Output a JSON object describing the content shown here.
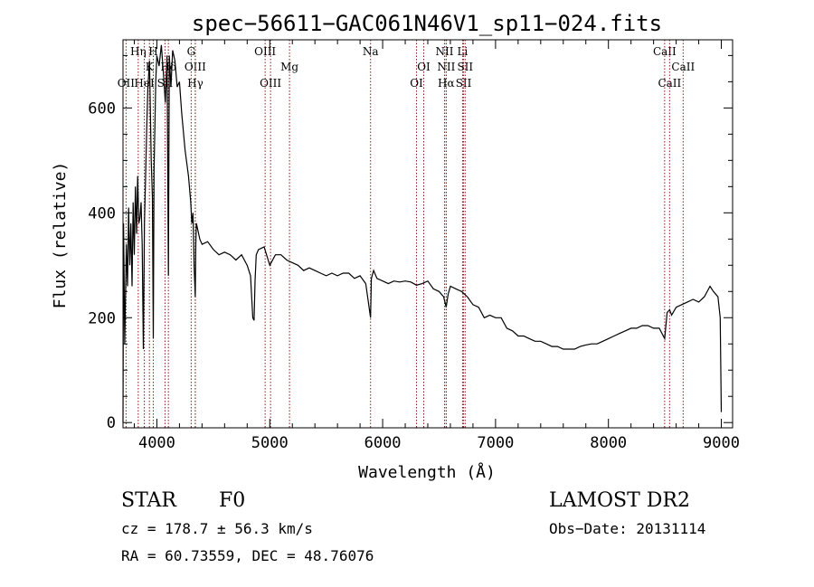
{
  "chart_data": {
    "type": "line",
    "title": "spec−56611−GAC061N46V1_sp11−024.fits",
    "xlabel": "Wavelength (Å)",
    "ylabel": "Flux (relative)",
    "xlim": [
      3700,
      9100
    ],
    "ylim": [
      -10,
      730
    ],
    "x_ticks": [
      4000,
      5000,
      6000,
      7000,
      8000,
      9000
    ],
    "y_ticks": [
      0,
      200,
      400,
      600
    ],
    "grid": false,
    "series": [
      {
        "x": [
          3700,
          3705,
          3715,
          3730,
          3740,
          3750,
          3760,
          3770,
          3780,
          3790,
          3800,
          3810,
          3820,
          3830,
          3840,
          3850,
          3860,
          3870,
          3880,
          3890,
          3900,
          3910,
          3920,
          3935,
          3950,
          3960,
          3968,
          3975,
          3990,
          4000,
          4020,
          4040,
          4060,
          4075,
          4090,
          4102,
          4110,
          4125,
          4140,
          4160,
          4180,
          4200,
          4220,
          4250,
          4280,
          4300,
          4310,
          4320,
          4330,
          4340,
          4345,
          4350,
          4360,
          4380,
          4400,
          4450,
          4500,
          4550,
          4600,
          4650,
          4700,
          4750,
          4800,
          4830,
          4850,
          4861,
          4870,
          4880,
          4900,
          4950,
          5000,
          5050,
          5100,
          5150,
          5200,
          5250,
          5300,
          5350,
          5400,
          5450,
          5500,
          5550,
          5600,
          5650,
          5700,
          5750,
          5800,
          5850,
          5893,
          5900,
          5920,
          5950,
          6000,
          6050,
          6100,
          6150,
          6200,
          6250,
          6300,
          6350,
          6400,
          6450,
          6500,
          6540,
          6563,
          6580,
          6600,
          6650,
          6700,
          6750,
          6800,
          6850,
          6900,
          6950,
          7000,
          7050,
          7100,
          7150,
          7200,
          7250,
          7300,
          7350,
          7400,
          7450,
          7500,
          7550,
          7600,
          7650,
          7700,
          7750,
          7800,
          7850,
          7900,
          7950,
          8000,
          8050,
          8100,
          8150,
          8200,
          8250,
          8300,
          8350,
          8400,
          8450,
          8498,
          8520,
          8542,
          8560,
          8600,
          8650,
          8700,
          8750,
          8800,
          8850,
          8900,
          8930,
          8950,
          8970,
          8990,
          9000
        ],
        "y": [
          0,
          380,
          150,
          340,
          260,
          410,
          300,
          380,
          260,
          420,
          320,
          450,
          360,
          470,
          380,
          390,
          420,
          340,
          140,
          380,
          470,
          560,
          640,
          690,
          500,
          430,
          160,
          480,
          650,
          700,
          680,
          720,
          660,
          610,
          700,
          280,
          700,
          640,
          710,
          690,
          640,
          650,
          590,
          520,
          470,
          420,
          380,
          400,
          300,
          240,
          340,
          380,
          370,
          350,
          340,
          345,
          330,
          320,
          325,
          320,
          310,
          320,
          300,
          280,
          200,
          195,
          270,
          320,
          330,
          335,
          300,
          320,
          320,
          310,
          305,
          300,
          290,
          295,
          290,
          285,
          280,
          285,
          280,
          285,
          285,
          275,
          280,
          265,
          200,
          275,
          290,
          275,
          270,
          265,
          270,
          268,
          270,
          268,
          262,
          265,
          270,
          255,
          250,
          240,
          220,
          245,
          260,
          255,
          250,
          240,
          225,
          220,
          200,
          205,
          200,
          200,
          180,
          175,
          165,
          165,
          160,
          155,
          155,
          150,
          145,
          145,
          140,
          140,
          140,
          145,
          148,
          150,
          150,
          155,
          160,
          165,
          170,
          175,
          180,
          180,
          185,
          185,
          180,
          180,
          160,
          210,
          215,
          205,
          220,
          225,
          230,
          235,
          230,
          240,
          260,
          250,
          245,
          240,
          200,
          20
        ]
      }
    ],
    "spectral_lines": [
      {
        "label": "OII",
        "x": 3727,
        "row": 0
      },
      {
        "label": "Hη",
        "x": 3835,
        "row": 2
      },
      {
        "label": "HeI",
        "x": 3889,
        "row": 0
      },
      {
        "label": "K",
        "x": 3934,
        "row": 1
      },
      {
        "label": "H",
        "x": 3968,
        "row": 2
      },
      {
        "label": "SII",
        "x": 4072,
        "row": 0
      },
      {
        "label": "Hδ",
        "x": 4102,
        "row": 1
      },
      {
        "label": "G",
        "x": 4304,
        "row": 2
      },
      {
        "label": "OIII",
        "x": 4340,
        "row": 1
      },
      {
        "label": "Hγ",
        "x": 4341,
        "row": 0
      },
      {
        "label": "OIII",
        "x": 4959,
        "row": 2
      },
      {
        "label": "OIII",
        "x": 5007,
        "row": 0
      },
      {
        "label": "Mg",
        "x": 5175,
        "row": 1
      },
      {
        "label": "Na",
        "x": 5893,
        "row": 2
      },
      {
        "label": "OI",
        "x": 6300,
        "row": 0
      },
      {
        "label": "OI",
        "x": 6364,
        "row": 1
      },
      {
        "label": "NII",
        "x": 6548,
        "row": 2
      },
      {
        "label": "NII",
        "x": 6563,
        "row": 1
      },
      {
        "label": "Hα",
        "x": 6563,
        "row": 0
      },
      {
        "label": "Li",
        "x": 6708,
        "row": 2
      },
      {
        "label": "SII",
        "x": 6717,
        "row": 0
      },
      {
        "label": "SII",
        "x": 6731,
        "row": 1
      },
      {
        "label": "CaII",
        "x": 8498,
        "row": 2
      },
      {
        "label": "CaII",
        "x": 8542,
        "row": 0
      },
      {
        "label": "CaII",
        "x": 8662,
        "row": 1
      }
    ],
    "line_color": "#000000",
    "marker_color": "#8b1a1a"
  },
  "info": {
    "object_class": "STAR",
    "subclass": "F0",
    "survey": "LAMOST DR2",
    "cz": "cz = 178.7 ± 56.3 km/s",
    "obs_date": "Obs−Date: 20131114",
    "coords": "RA =  60.73559, DEC =  48.76076"
  }
}
